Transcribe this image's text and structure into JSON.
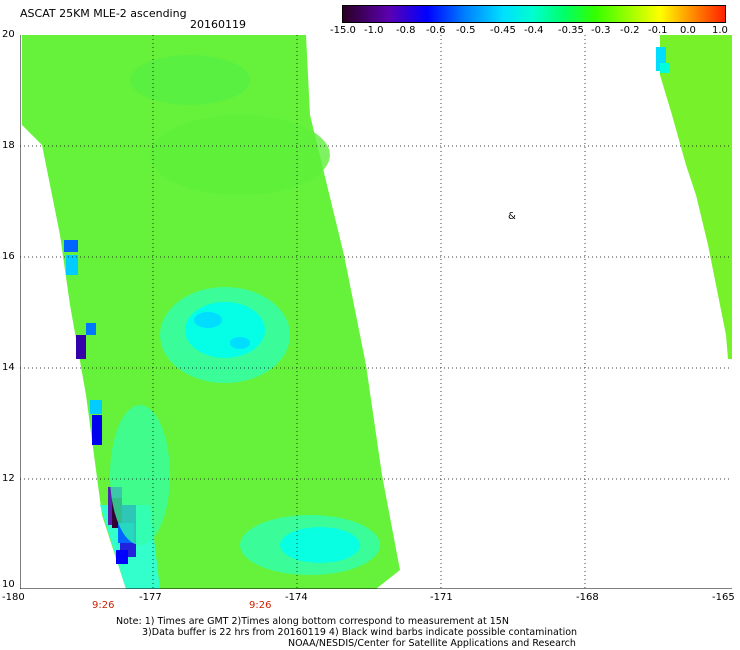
{
  "header": {
    "title": "ASCAT 25KM MLE-2 ascending",
    "date": "20160119"
  },
  "colorbar": {
    "labels": [
      "-15.0",
      "-1.0",
      "-0.8",
      "-0.6",
      "-0.5",
      "-0.45",
      "-0.4",
      "-0.35",
      "-0.3",
      "-0.2",
      "-0.1",
      "0.0",
      "1.0"
    ],
    "colors": [
      "#330033",
      "#5500aa",
      "#0000ff",
      "#0077ff",
      "#00ccff",
      "#00ffee",
      "#00ffaa",
      "#33ff44",
      "#66ff00",
      "#bbff00",
      "#ffff00",
      "#ffaa00",
      "#ff3300"
    ]
  },
  "map": {
    "lat_labels": [
      "20",
      "18",
      "16",
      "14",
      "12",
      "10"
    ],
    "lon_labels": [
      "-180",
      "-177",
      "-174",
      "-171",
      "-168",
      "-165"
    ],
    "marker": "&"
  },
  "time_labels": [
    "9:26",
    "9:26"
  ],
  "notes": [
    "Note: 1) Times are GMT 2)Times along bottom correspond to measurement at 15N",
    "3)Data buffer is 22 hrs from 20160119 4) Black wind barbs indicate possible contamination",
    "NOAA/NESDIS/Center for Satellite Applications and Research"
  ]
}
